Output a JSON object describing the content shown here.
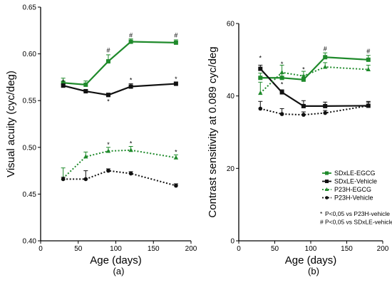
{
  "colors": {
    "green": "#1f8a2b",
    "black": "#111111"
  },
  "chart_data": [
    {
      "type": "line",
      "panel_label": "(a)",
      "xlabel": "Age (days)",
      "ylabel": "Visual acuity (cyc/deg)",
      "xlim": [
        0,
        200
      ],
      "ylim": [
        0.4,
        0.65
      ],
      "x_ticks": [
        "0",
        "50",
        "100",
        "150",
        "200"
      ],
      "y_ticks": [
        "0.40",
        "0.45",
        "0.50",
        "0.55",
        "0.60",
        "0.65"
      ],
      "series": [
        {
          "name": "SDxLE-EGCG",
          "color": "green",
          "style": "solid",
          "marker": "square",
          "x": [
            30,
            60,
            90,
            120,
            180
          ],
          "y": [
            0.569,
            0.567,
            0.592,
            0.613,
            0.612
          ],
          "err": [
            0.005,
            0.004,
            0.007,
            0.003,
            0.003
          ]
        },
        {
          "name": "SDxLE-Vehicle",
          "color": "black",
          "style": "solid",
          "marker": "square",
          "x": [
            30,
            60,
            90,
            120,
            180
          ],
          "y": [
            0.566,
            0.56,
            0.556,
            0.565,
            0.568
          ],
          "err": [
            0.002,
            0.002,
            0.002,
            0.003,
            0.002
          ]
        },
        {
          "name": "P23H-EGCG",
          "color": "green",
          "style": "dotted",
          "marker": "triangle",
          "x": [
            30,
            60,
            90,
            120,
            180
          ],
          "y": [
            0.467,
            0.49,
            0.496,
            0.497,
            0.489
          ],
          "err": [
            0.011,
            0.005,
            0.004,
            0.004,
            0.003
          ]
        },
        {
          "name": "P23H-Vehicle",
          "color": "black",
          "style": "dotted",
          "marker": "circle",
          "x": [
            30,
            60,
            90,
            120,
            180
          ],
          "y": [
            0.466,
            0.466,
            0.475,
            0.472,
            0.459
          ],
          "err": [
            0.002,
            0.009,
            0.002,
            0.002,
            0.002
          ]
        }
      ],
      "annotations": [
        {
          "text": "*",
          "x": 30,
          "y": 0.57
        },
        {
          "text": "#",
          "x": 90,
          "y": 0.604
        },
        {
          "text": "*",
          "x": 90,
          "y": 0.549
        },
        {
          "text": "#",
          "x": 120,
          "y": 0.62
        },
        {
          "text": "*",
          "x": 120,
          "y": 0.572
        },
        {
          "text": "#",
          "x": 180,
          "y": 0.62
        },
        {
          "text": "*",
          "x": 180,
          "y": 0.573
        },
        {
          "text": "*",
          "x": 90,
          "y": 0.503
        },
        {
          "text": "*",
          "x": 120,
          "y": 0.504
        },
        {
          "text": "*",
          "x": 180,
          "y": 0.495
        }
      ]
    },
    {
      "type": "line",
      "panel_label": "(b)",
      "xlabel": "Age (days)",
      "ylabel": "Contrast sensitivity at 0.089 cyc/deg",
      "xlim": [
        0,
        200
      ],
      "ylim": [
        0,
        60
      ],
      "x_ticks": [
        "0",
        "50",
        "100",
        "150",
        "200"
      ],
      "y_ticks": [
        "0",
        "20",
        "40",
        "60"
      ],
      "series": [
        {
          "name": "SDxLE-EGCG",
          "color": "green",
          "style": "solid",
          "marker": "square",
          "x": [
            30,
            60,
            90,
            120,
            180
          ],
          "y": [
            45.0,
            45.0,
            44.5,
            50.7,
            50.0
          ],
          "err": [
            1.3,
            1.2,
            1.2,
            1.2,
            1.2
          ]
        },
        {
          "name": "SDxLE-Vehicle",
          "color": "black",
          "style": "solid",
          "marker": "square",
          "x": [
            30,
            60,
            90,
            120,
            180
          ],
          "y": [
            47.5,
            41.0,
            37.2,
            37.2,
            37.3
          ],
          "err": [
            1.0,
            0.7,
            1.5,
            1.1,
            1.2
          ]
        },
        {
          "name": "P23H-EGCG",
          "color": "green",
          "style": "dotted",
          "marker": "triangle",
          "x": [
            30,
            60,
            90,
            120,
            180
          ],
          "y": [
            40.8,
            46.5,
            45.5,
            48.0,
            47.3
          ],
          "err": [
            3.0,
            2.0,
            1.3,
            1.2,
            1.2
          ]
        },
        {
          "name": "P23H-Vehicle",
          "color": "black",
          "style": "dotted",
          "marker": "circle",
          "x": [
            30,
            60,
            90,
            120,
            180
          ],
          "y": [
            36.5,
            35.0,
            34.8,
            35.3,
            37.3
          ],
          "err": [
            2.0,
            1.5,
            0.8,
            0.7,
            1.0
          ]
        }
      ],
      "annotations": [
        {
          "text": "*",
          "x": 30,
          "y": 50.5
        },
        {
          "text": "*",
          "x": 60,
          "y": 48.8
        },
        {
          "text": "*",
          "x": 60,
          "y": 43.2
        },
        {
          "text": "*",
          "x": 90,
          "y": 47.3
        },
        {
          "text": "#",
          "x": 120,
          "y": 53.0
        },
        {
          "text": "#",
          "x": 180,
          "y": 52.3
        }
      ],
      "legend": {
        "position": "right",
        "items": [
          "SDxLE-EGCG",
          "SDxLE-Vehicle",
          "P23H-EGCG",
          "P23H-Vehicle"
        ]
      },
      "notes": [
        {
          "symbol": "*",
          "text": "P<0,05 vs P23H-vehicle"
        },
        {
          "symbol": "#",
          "text": "P<0,05 vs SDxLE-vehicle"
        }
      ]
    }
  ]
}
